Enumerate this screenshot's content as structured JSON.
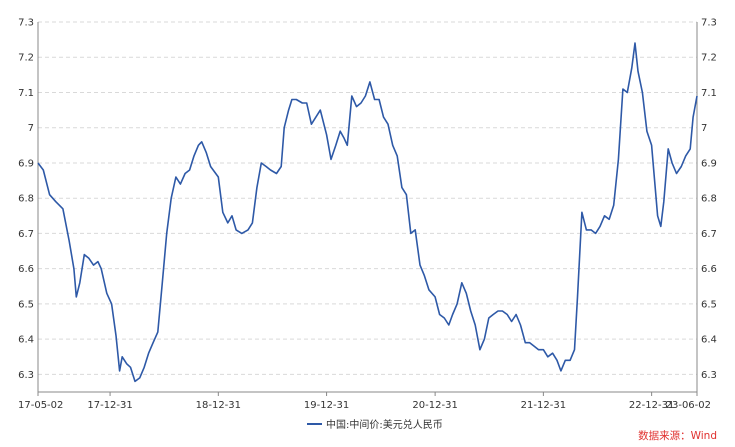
{
  "chart_data": {
    "type": "line",
    "title": "",
    "xlabel": "",
    "ylabel": "",
    "x_start": "17-05-02",
    "x_end": "23-06-02",
    "x_ticks": [
      "17-05-02",
      "17-12-31",
      "18-12-31",
      "19-12-31",
      "20-12-31",
      "21-12-31",
      "22-12-31",
      "23-06-02"
    ],
    "y_ticks": [
      "6.3",
      "6.4",
      "6.5",
      "6.6",
      "6.7",
      "6.8",
      "6.9",
      "7",
      "7.1",
      "7.2",
      "7.3"
    ],
    "ylim": [
      6.25,
      7.3
    ],
    "grid": true,
    "legend_position": "bottom-center",
    "series": [
      {
        "name": "中国:中间价:美元兑人民币",
        "color": "#2e59a7",
        "points": [
          [
            "2017-05-02",
            6.9
          ],
          [
            "2017-05-20",
            6.88
          ],
          [
            "2017-06-10",
            6.81
          ],
          [
            "2017-07-01",
            6.79
          ],
          [
            "2017-07-25",
            6.77
          ],
          [
            "2017-08-15",
            6.68
          ],
          [
            "2017-08-31",
            6.6
          ],
          [
            "2017-09-08",
            6.52
          ],
          [
            "2017-09-20",
            6.56
          ],
          [
            "2017-10-05",
            6.64
          ],
          [
            "2017-10-20",
            6.63
          ],
          [
            "2017-11-05",
            6.61
          ],
          [
            "2017-11-20",
            6.62
          ],
          [
            "2017-12-01",
            6.6
          ],
          [
            "2017-12-20",
            6.53
          ],
          [
            "2018-01-05",
            6.5
          ],
          [
            "2018-01-20",
            6.41
          ],
          [
            "2018-02-01",
            6.31
          ],
          [
            "2018-02-10",
            6.35
          ],
          [
            "2018-02-25",
            6.33
          ],
          [
            "2018-03-10",
            6.32
          ],
          [
            "2018-03-25",
            6.28
          ],
          [
            "2018-04-10",
            6.29
          ],
          [
            "2018-04-25",
            6.32
          ],
          [
            "2018-05-10",
            6.36
          ],
          [
            "2018-05-25",
            6.39
          ],
          [
            "2018-06-10",
            6.42
          ],
          [
            "2018-06-25",
            6.56
          ],
          [
            "2018-07-10",
            6.7
          ],
          [
            "2018-07-25",
            6.8
          ],
          [
            "2018-08-10",
            6.86
          ],
          [
            "2018-08-25",
            6.84
          ],
          [
            "2018-09-10",
            6.87
          ],
          [
            "2018-09-25",
            6.88
          ],
          [
            "2018-10-10",
            6.92
          ],
          [
            "2018-10-25",
            6.95
          ],
          [
            "2018-11-05",
            6.96
          ],
          [
            "2018-11-20",
            6.93
          ],
          [
            "2018-12-05",
            6.89
          ],
          [
            "2018-12-31",
            6.86
          ],
          [
            "2019-01-15",
            6.76
          ],
          [
            "2019-02-01",
            6.73
          ],
          [
            "2019-02-15",
            6.75
          ],
          [
            "2019-03-01",
            6.71
          ],
          [
            "2019-03-20",
            6.7
          ],
          [
            "2019-04-10",
            6.71
          ],
          [
            "2019-04-25",
            6.73
          ],
          [
            "2019-05-10",
            6.83
          ],
          [
            "2019-05-25",
            6.9
          ],
          [
            "2019-06-10",
            6.89
          ],
          [
            "2019-06-25",
            6.88
          ],
          [
            "2019-07-15",
            6.87
          ],
          [
            "2019-07-31",
            6.89
          ],
          [
            "2019-08-10",
            7.0
          ],
          [
            "2019-08-25",
            7.05
          ],
          [
            "2019-09-05",
            7.08
          ],
          [
            "2019-09-20",
            7.08
          ],
          [
            "2019-10-10",
            7.07
          ],
          [
            "2019-10-25",
            7.07
          ],
          [
            "2019-11-10",
            7.01
          ],
          [
            "2019-11-25",
            7.03
          ],
          [
            "2019-12-10",
            7.05
          ],
          [
            "2019-12-31",
            6.98
          ],
          [
            "2020-01-15",
            6.91
          ],
          [
            "2020-01-31",
            6.95
          ],
          [
            "2020-02-15",
            6.99
          ],
          [
            "2020-02-28",
            6.97
          ],
          [
            "2020-03-10",
            6.95
          ],
          [
            "2020-03-25",
            7.09
          ],
          [
            "2020-04-10",
            7.06
          ],
          [
            "2020-04-25",
            7.07
          ],
          [
            "2020-05-10",
            7.09
          ],
          [
            "2020-05-25",
            7.13
          ],
          [
            "2020-06-10",
            7.08
          ],
          [
            "2020-06-25",
            7.08
          ],
          [
            "2020-07-10",
            7.03
          ],
          [
            "2020-07-25",
            7.01
          ],
          [
            "2020-08-10",
            6.95
          ],
          [
            "2020-08-25",
            6.92
          ],
          [
            "2020-09-10",
            6.83
          ],
          [
            "2020-09-25",
            6.81
          ],
          [
            "2020-10-10",
            6.7
          ],
          [
            "2020-10-25",
            6.71
          ],
          [
            "2020-11-10",
            6.61
          ],
          [
            "2020-11-25",
            6.58
          ],
          [
            "2020-12-10",
            6.54
          ],
          [
            "2020-12-31",
            6.52
          ],
          [
            "2021-01-15",
            6.47
          ],
          [
            "2021-01-31",
            6.46
          ],
          [
            "2021-02-15",
            6.44
          ],
          [
            "2021-02-28",
            6.47
          ],
          [
            "2021-03-15",
            6.5
          ],
          [
            "2021-03-31",
            6.56
          ],
          [
            "2021-04-15",
            6.53
          ],
          [
            "2021-04-30",
            6.48
          ],
          [
            "2021-05-15",
            6.44
          ],
          [
            "2021-05-31",
            6.37
          ],
          [
            "2021-06-15",
            6.4
          ],
          [
            "2021-06-30",
            6.46
          ],
          [
            "2021-07-15",
            6.47
          ],
          [
            "2021-07-31",
            6.48
          ],
          [
            "2021-08-15",
            6.48
          ],
          [
            "2021-08-31",
            6.47
          ],
          [
            "2021-09-15",
            6.45
          ],
          [
            "2021-09-30",
            6.47
          ],
          [
            "2021-10-15",
            6.44
          ],
          [
            "2021-10-31",
            6.39
          ],
          [
            "2021-11-15",
            6.39
          ],
          [
            "2021-11-30",
            6.38
          ],
          [
            "2021-12-15",
            6.37
          ],
          [
            "2021-12-31",
            6.37
          ],
          [
            "2022-01-15",
            6.35
          ],
          [
            "2022-01-31",
            6.36
          ],
          [
            "2022-02-15",
            6.34
          ],
          [
            "2022-02-28",
            6.31
          ],
          [
            "2022-03-15",
            6.34
          ],
          [
            "2022-03-31",
            6.34
          ],
          [
            "2022-04-15",
            6.37
          ],
          [
            "2022-04-25",
            6.52
          ],
          [
            "2022-05-10",
            6.76
          ],
          [
            "2022-05-25",
            6.71
          ],
          [
            "2022-06-10",
            6.71
          ],
          [
            "2022-06-25",
            6.7
          ],
          [
            "2022-07-10",
            6.72
          ],
          [
            "2022-07-25",
            6.75
          ],
          [
            "2022-08-10",
            6.74
          ],
          [
            "2022-08-25",
            6.78
          ],
          [
            "2022-09-10",
            6.91
          ],
          [
            "2022-09-25",
            7.11
          ],
          [
            "2022-10-10",
            7.1
          ],
          [
            "2022-10-25",
            7.17
          ],
          [
            "2022-11-05",
            7.24
          ],
          [
            "2022-11-15",
            7.16
          ],
          [
            "2022-11-30",
            7.1
          ],
          [
            "2022-12-15",
            6.99
          ],
          [
            "2022-12-31",
            6.95
          ],
          [
            "2023-01-10",
            6.85
          ],
          [
            "2023-01-20",
            6.75
          ],
          [
            "2023-01-31",
            6.72
          ],
          [
            "2023-02-10",
            6.79
          ],
          [
            "2023-02-25",
            6.94
          ],
          [
            "2023-03-10",
            6.9
          ],
          [
            "2023-03-25",
            6.87
          ],
          [
            "2023-04-10",
            6.89
          ],
          [
            "2023-04-25",
            6.92
          ],
          [
            "2023-05-10",
            6.94
          ],
          [
            "2023-05-20",
            7.03
          ],
          [
            "2023-06-02",
            7.09
          ]
        ]
      }
    ]
  },
  "source_label": "数据来源：Wind"
}
